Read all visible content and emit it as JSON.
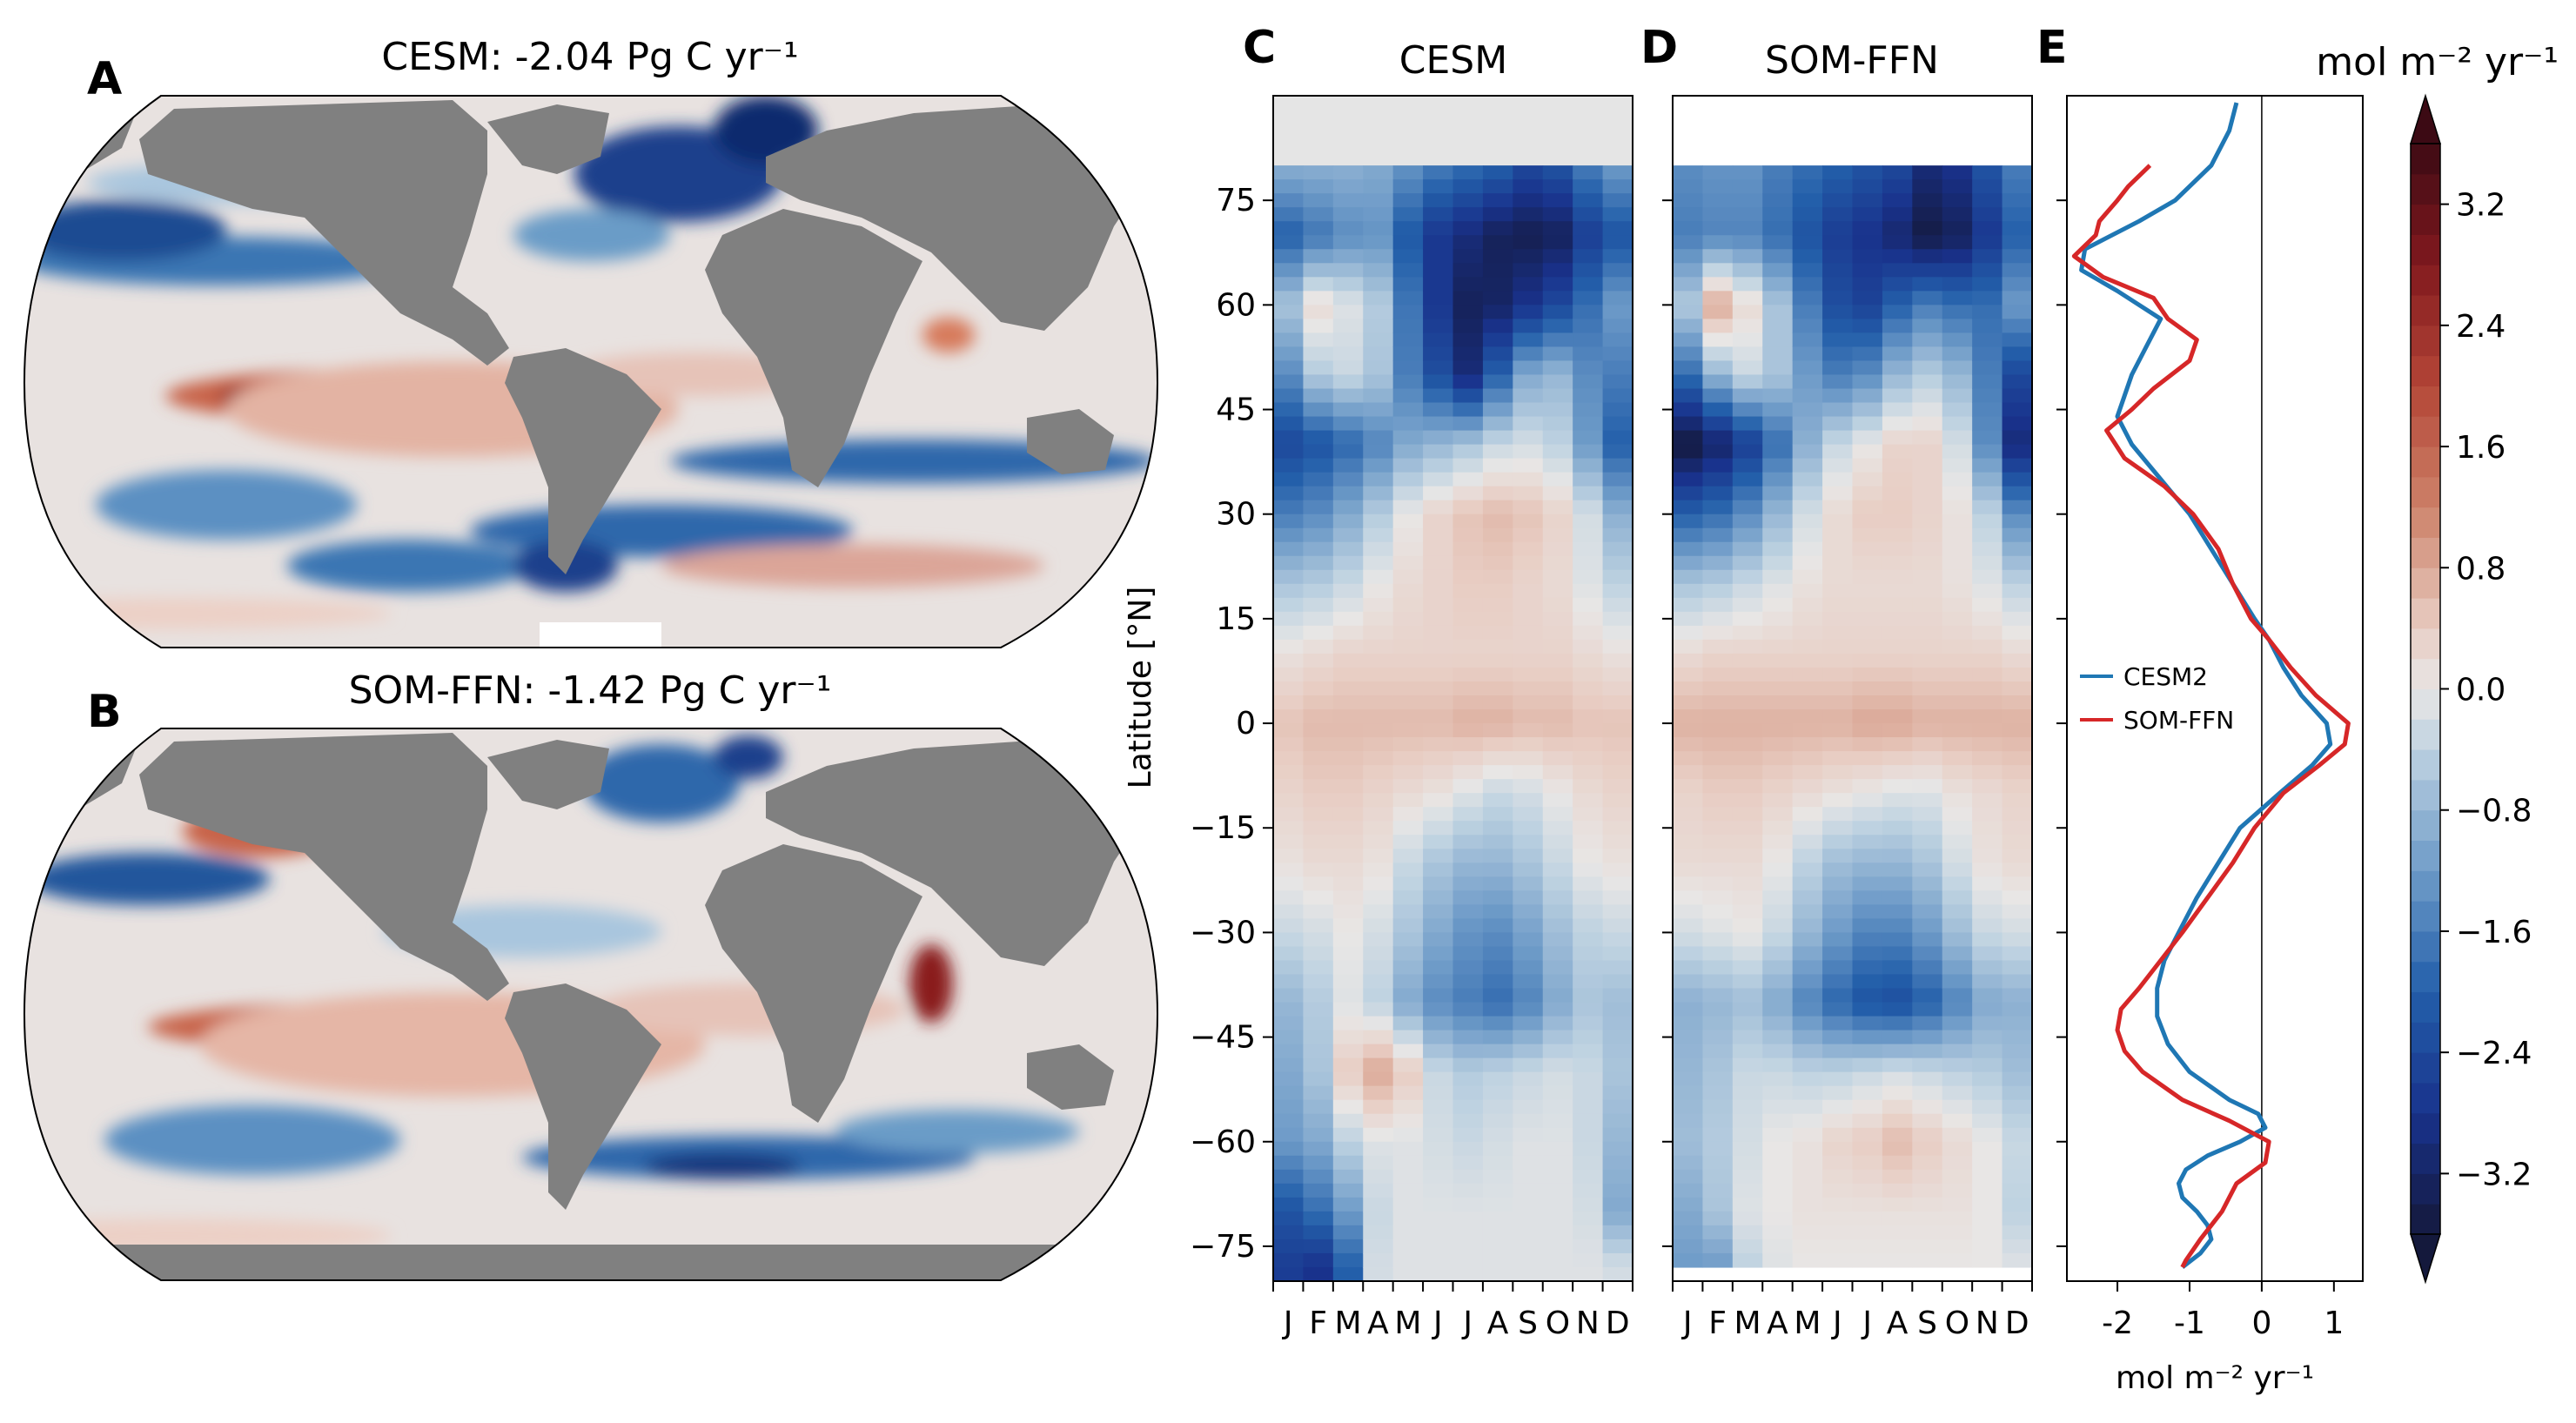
{
  "panels": {
    "A": {
      "label": "A",
      "title": "CESM: -2.04 Pg C yr⁻¹"
    },
    "B": {
      "label": "B",
      "title": "SOM-FFN: -1.42 Pg C yr⁻¹"
    },
    "C": {
      "label": "C",
      "title": "CESM"
    },
    "D": {
      "label": "D",
      "title": "SOM-FFN"
    },
    "E": {
      "label": "E",
      "title": ""
    }
  },
  "colors": {
    "land": "#808080",
    "cesm_line": "#1f77b4",
    "somffn_line": "#d62728",
    "nodata": "#e5e5e5"
  },
  "chart_data": [
    {
      "type": "heatmap",
      "panel": "C",
      "title": "CESM",
      "ylabel": "Latitude [°N]",
      "xlabel": "",
      "x_categories": [
        "J",
        "F",
        "M",
        "A",
        "M",
        "J",
        "J",
        "A",
        "S",
        "O",
        "N",
        "D"
      ],
      "y_ticks": [
        75,
        60,
        45,
        30,
        15,
        0,
        -15,
        -30,
        -45,
        -60,
        -75
      ],
      "ylim": [
        -80,
        90
      ],
      "colormap": "blue-white-red diverging",
      "data_valid_lat": [
        -80,
        80
      ],
      "latitudes": [
        80,
        70,
        60,
        50,
        40,
        30,
        20,
        10,
        0,
        -10,
        -20,
        -30,
        -40,
        -50,
        -60,
        -70,
        -78
      ],
      "values": [
        [
          -0.9,
          -0.9,
          -0.9,
          -1.0,
          -1.3,
          -1.6,
          -1.8,
          -2.0,
          -2.4,
          -2.2,
          -1.6,
          -1.2
        ],
        [
          -2.0,
          -1.7,
          -1.4,
          -1.3,
          -2.1,
          -2.7,
          -3.0,
          -3.3,
          -3.4,
          -3.3,
          -2.6,
          -2.2
        ],
        [
          -0.6,
          0.2,
          -0.1,
          -0.5,
          -1.7,
          -2.7,
          -3.3,
          -3.2,
          -2.8,
          -2.4,
          -1.8,
          -1.2
        ],
        [
          -1.4,
          -0.5,
          -0.3,
          -0.6,
          -1.6,
          -2.3,
          -3.0,
          -2.0,
          -1.0,
          -0.8,
          -1.4,
          -1.6
        ],
        [
          -2.4,
          -2.2,
          -1.9,
          -1.5,
          -1.0,
          -0.8,
          -0.6,
          -0.3,
          -0.2,
          -0.4,
          -1.2,
          -2.0
        ],
        [
          -1.6,
          -1.4,
          -1.0,
          -0.5,
          0.0,
          0.3,
          0.5,
          0.6,
          0.5,
          0.3,
          -0.2,
          -0.9
        ],
        [
          -0.6,
          -0.5,
          -0.3,
          0.0,
          0.2,
          0.3,
          0.4,
          0.4,
          0.3,
          0.2,
          -0.1,
          -0.4
        ],
        [
          0.1,
          0.2,
          0.3,
          0.3,
          0.3,
          0.3,
          0.3,
          0.3,
          0.3,
          0.3,
          0.2,
          0.1
        ],
        [
          0.5,
          0.6,
          0.6,
          0.6,
          0.6,
          0.6,
          0.7,
          0.7,
          0.6,
          0.6,
          0.5,
          0.5
        ],
        [
          0.3,
          0.4,
          0.4,
          0.3,
          0.2,
          0.1,
          -0.1,
          -0.3,
          -0.2,
          0.0,
          0.2,
          0.3
        ],
        [
          0.1,
          0.2,
          0.2,
          0.1,
          -0.3,
          -0.6,
          -0.8,
          -0.8,
          -0.6,
          -0.3,
          0.0,
          0.1
        ],
        [
          -0.3,
          -0.2,
          0.0,
          -0.2,
          -0.6,
          -1.0,
          -1.3,
          -1.4,
          -1.1,
          -0.7,
          -0.4,
          -0.3
        ],
        [
          -0.8,
          -0.5,
          -0.1,
          -0.4,
          -1.0,
          -1.4,
          -1.6,
          -1.8,
          -1.5,
          -1.0,
          -0.6,
          -0.7
        ],
        [
          -1.0,
          -0.6,
          0.4,
          0.8,
          0.4,
          -0.3,
          -0.5,
          -0.4,
          -0.3,
          -0.2,
          -0.3,
          -0.6
        ],
        [
          -1.2,
          -1.0,
          -0.4,
          -0.1,
          -0.1,
          -0.2,
          -0.3,
          -0.2,
          -0.1,
          -0.1,
          -0.3,
          -0.8
        ],
        [
          -2.2,
          -1.8,
          -1.2,
          -0.3,
          -0.1,
          -0.1,
          -0.1,
          -0.1,
          -0.1,
          -0.1,
          -0.2,
          -1.0
        ],
        [
          -2.6,
          -2.8,
          -2.0,
          -0.2,
          -0.1,
          -0.1,
          -0.1,
          -0.1,
          -0.1,
          -0.1,
          -0.1,
          -0.2
        ]
      ]
    },
    {
      "type": "heatmap",
      "panel": "D",
      "title": "SOM-FFN",
      "ylabel": "",
      "xlabel": "",
      "x_categories": [
        "J",
        "F",
        "M",
        "A",
        "M",
        "J",
        "J",
        "A",
        "S",
        "O",
        "N",
        "D"
      ],
      "y_ticks": [
        75,
        60,
        45,
        30,
        15,
        0,
        -15,
        -30,
        -45,
        -60,
        -75
      ],
      "ylim": [
        -80,
        90
      ],
      "colormap": "blue-white-red diverging",
      "data_valid_lat": [
        -78,
        80
      ],
      "latitudes": [
        80,
        70,
        60,
        50,
        40,
        30,
        20,
        10,
        0,
        -10,
        -20,
        -30,
        -40,
        -50,
        -60,
        -70,
        -78
      ],
      "values": [
        [
          -1.4,
          -1.3,
          -1.3,
          -1.6,
          -1.8,
          -2.0,
          -2.2,
          -2.4,
          -3.0,
          -2.8,
          -2.2,
          -1.6
        ],
        [
          -1.6,
          -1.5,
          -1.5,
          -1.8,
          -2.2,
          -2.6,
          -2.8,
          -3.1,
          -3.5,
          -3.3,
          -2.7,
          -2.0
        ],
        [
          -0.5,
          0.8,
          0.2,
          -0.6,
          -1.6,
          -2.3,
          -2.5,
          -2.0,
          -1.6,
          -1.8,
          -1.8,
          -1.2
        ],
        [
          -1.8,
          -0.8,
          -0.3,
          -0.6,
          -1.2,
          -1.6,
          -1.4,
          -0.8,
          -0.5,
          -0.8,
          -1.6,
          -2.4
        ],
        [
          -3.6,
          -3.2,
          -2.6,
          -1.8,
          -0.9,
          -0.3,
          0.0,
          0.3,
          0.3,
          -0.2,
          -1.4,
          -3.0
        ],
        [
          -2.0,
          -1.8,
          -1.4,
          -0.8,
          -0.2,
          0.2,
          0.4,
          0.4,
          0.3,
          0.1,
          -0.4,
          -1.4
        ],
        [
          -0.6,
          -0.5,
          -0.3,
          -0.1,
          0.1,
          0.2,
          0.2,
          0.2,
          0.2,
          0.1,
          -0.1,
          -0.4
        ],
        [
          0.2,
          0.3,
          0.3,
          0.3,
          0.3,
          0.3,
          0.3,
          0.3,
          0.3,
          0.3,
          0.3,
          0.2
        ],
        [
          0.7,
          0.7,
          0.7,
          0.7,
          0.7,
          0.7,
          0.8,
          0.8,
          0.7,
          0.7,
          0.7,
          0.7
        ],
        [
          0.3,
          0.4,
          0.4,
          0.3,
          0.2,
          0.1,
          0.0,
          -0.1,
          -0.1,
          0.1,
          0.2,
          0.3
        ],
        [
          0.2,
          0.2,
          0.2,
          0.0,
          -0.4,
          -0.7,
          -0.8,
          -0.8,
          -0.6,
          -0.2,
          0.1,
          0.2
        ],
        [
          -0.2,
          -0.1,
          0.0,
          -0.3,
          -0.8,
          -1.2,
          -1.5,
          -1.5,
          -1.2,
          -0.7,
          -0.3,
          -0.2
        ],
        [
          -0.9,
          -0.8,
          -0.7,
          -1.0,
          -1.5,
          -1.9,
          -2.2,
          -2.3,
          -2.0,
          -1.5,
          -1.0,
          -0.9
        ],
        [
          -0.8,
          -0.6,
          -0.3,
          -0.3,
          -0.4,
          -0.4,
          -0.3,
          -0.2,
          -0.3,
          -0.4,
          -0.5,
          -0.7
        ],
        [
          -0.7,
          -0.5,
          -0.2,
          0.0,
          0.1,
          0.3,
          0.4,
          0.6,
          0.4,
          0.2,
          0.0,
          -0.3
        ],
        [
          -1.0,
          -0.6,
          -0.1,
          0.0,
          0.1,
          0.1,
          0.1,
          0.1,
          0.1,
          0.1,
          0.0,
          -0.4
        ],
        [
          -1.2,
          -1.2,
          -0.4,
          -0.1,
          0.0,
          0.0,
          0.0,
          0.0,
          0.0,
          0.0,
          0.0,
          -0.1
        ]
      ]
    },
    {
      "type": "line",
      "panel": "E",
      "title": "",
      "xlabel": "mol m⁻² yr⁻¹",
      "ylabel": "",
      "xlim": [
        -2.7,
        1.4
      ],
      "ylim": [
        -80,
        90
      ],
      "x_ticks": [
        "-2",
        "-1",
        "0",
        "1"
      ],
      "x_tick_values": [
        -2,
        -1,
        0,
        1
      ],
      "vline_at": 0,
      "legend": "center-left",
      "series": [
        {
          "name": "CESM2",
          "lat": [
            89,
            85,
            80,
            75,
            72,
            68,
            65,
            62,
            58,
            54,
            50,
            47,
            44,
            40,
            35,
            30,
            25,
            20,
            15,
            12,
            8,
            4,
            0,
            -3,
            -6,
            -10,
            -15,
            -20,
            -25,
            -30,
            -34,
            -38,
            -42,
            -46,
            -50,
            -54,
            -56,
            -58,
            -60,
            -62,
            -64,
            -66,
            -68,
            -70,
            -72,
            -74,
            -76,
            -78
          ],
          "x": [
            -0.35,
            -0.45,
            -0.7,
            -1.2,
            -1.7,
            -2.45,
            -2.5,
            -2.0,
            -1.4,
            -1.6,
            -1.8,
            -1.9,
            -2.0,
            -1.8,
            -1.4,
            -1.0,
            -0.7,
            -0.4,
            -0.1,
            0.1,
            0.3,
            0.55,
            0.9,
            0.95,
            0.7,
            0.25,
            -0.3,
            -0.6,
            -0.9,
            -1.15,
            -1.35,
            -1.45,
            -1.45,
            -1.3,
            -1.0,
            -0.45,
            -0.05,
            0.05,
            -0.3,
            -0.75,
            -1.05,
            -1.15,
            -1.1,
            -0.9,
            -0.75,
            -0.7,
            -0.85,
            -1.1
          ]
        },
        {
          "name": "SOM-FFN",
          "lat": [
            80,
            77,
            75,
            72,
            70,
            67,
            64,
            61,
            58,
            55,
            52,
            48,
            45,
            42,
            38,
            34,
            30,
            25,
            20,
            15,
            12,
            8,
            4,
            0,
            -3,
            -6,
            -10,
            -15,
            -20,
            -25,
            -30,
            -34,
            -38,
            -41,
            -44,
            -47,
            -50,
            -54,
            -57,
            -60,
            -63,
            -66,
            -70,
            -74,
            -77,
            -78
          ],
          "x": [
            -1.55,
            -1.85,
            -2.0,
            -2.25,
            -2.3,
            -2.6,
            -2.2,
            -1.5,
            -1.3,
            -0.9,
            -1.0,
            -1.5,
            -1.8,
            -2.15,
            -1.9,
            -1.35,
            -0.95,
            -0.6,
            -0.4,
            -0.15,
            0.1,
            0.4,
            0.75,
            1.2,
            1.15,
            0.8,
            0.3,
            -0.1,
            -0.4,
            -0.75,
            -1.1,
            -1.4,
            -1.7,
            -1.95,
            -2.0,
            -1.9,
            -1.65,
            -1.1,
            -0.45,
            0.1,
            0.05,
            -0.35,
            -0.55,
            -0.85,
            -1.05,
            -1.1
          ]
        }
      ]
    },
    {
      "type": "heatmap",
      "panel": "A",
      "title": "CESM: -2.04 Pg C yr⁻¹",
      "projection": "Robinson (global map)",
      "colormap": "blue-white-red diverging"
    },
    {
      "type": "heatmap",
      "panel": "B",
      "title": "SOM-FFN: -1.42 Pg C yr⁻¹",
      "projection": "Robinson (global map)",
      "colormap": "blue-white-red diverging"
    }
  ],
  "colorbar": {
    "label": "mol m⁻² yr⁻¹",
    "range": [
      -3.6,
      3.6
    ],
    "ticks": [
      "3.2",
      "2.4",
      "1.6",
      "0.8",
      "0.0",
      "−0.8",
      "−1.6",
      "−2.4",
      "−3.2"
    ],
    "tick_values": [
      3.2,
      2.4,
      1.6,
      0.8,
      0.0,
      -0.8,
      -1.6,
      -2.4,
      -3.2
    ],
    "extend": "both"
  }
}
